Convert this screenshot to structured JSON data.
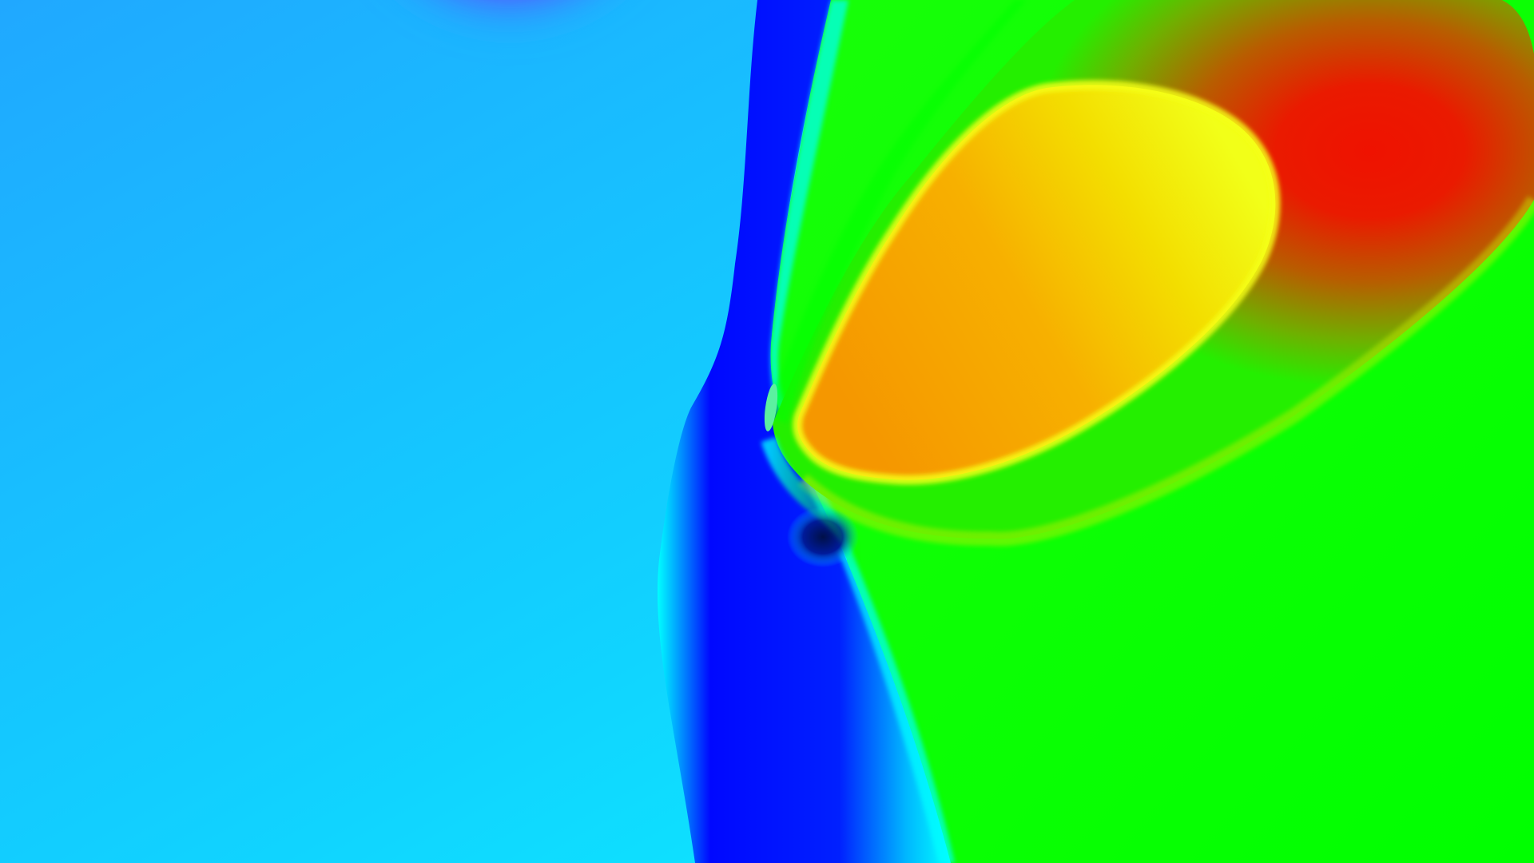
{
  "image": {
    "kind": "abstract-color-field",
    "palette": {
      "sky_blue": "#11ccff",
      "magenta": "#ff10f0",
      "violet": "#7a2cff",
      "cyan": "#00ffff",
      "deep_blue": "#0007ff",
      "green": "#00ff00",
      "red": "#ef1200",
      "orange": "#f7a000",
      "yellow": "#f3ff12",
      "dark_navy": "#001048"
    }
  }
}
